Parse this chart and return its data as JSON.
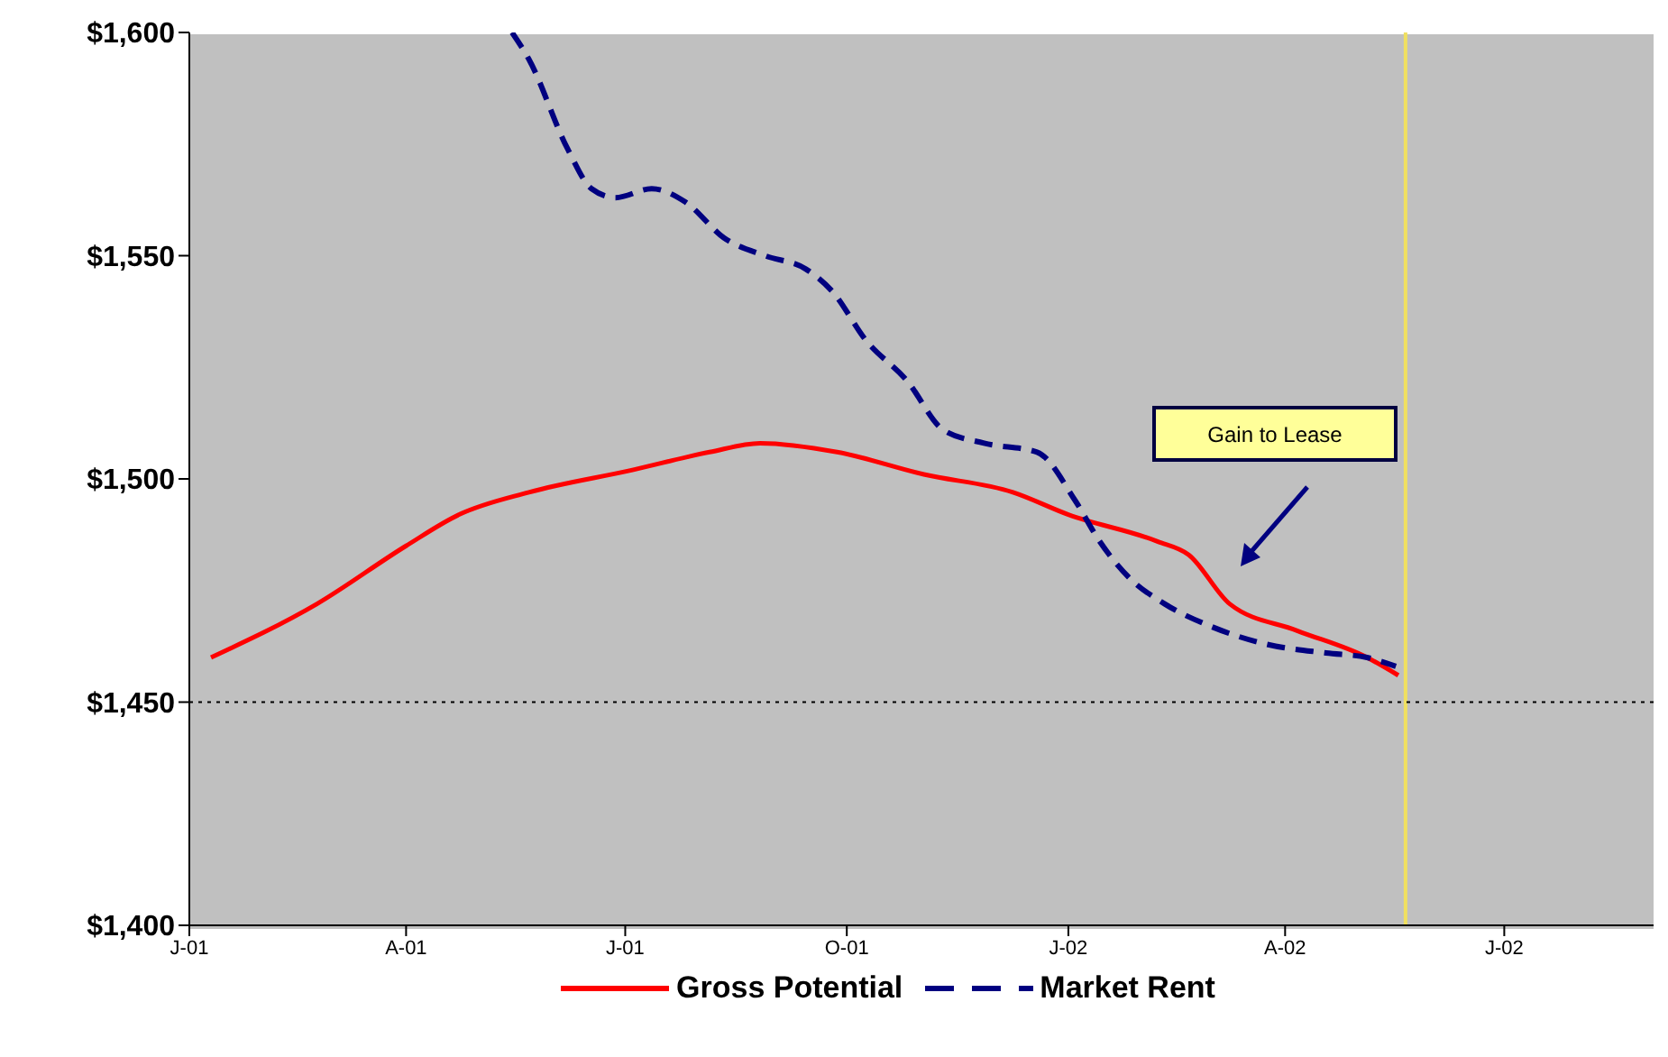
{
  "chart_data": {
    "type": "line",
    "xlim": [
      "2001-01",
      "2002-09"
    ],
    "ylim": [
      1400,
      1600
    ],
    "xticks": [
      {
        "value": "2001-01",
        "label": "J-01"
      },
      {
        "value": "2001-04",
        "label": "A-01"
      },
      {
        "value": "2001-07",
        "label": "J-01"
      },
      {
        "value": "2001-10",
        "label": "O-01"
      },
      {
        "value": "2002-01",
        "label": "J-02"
      },
      {
        "value": "2002-04",
        "label": "A-02"
      },
      {
        "value": "2002-07",
        "label": "J-02"
      }
    ],
    "yticks": [
      {
        "value": 1400,
        "label": "$1,400"
      },
      {
        "value": 1450,
        "label": "$1,450"
      },
      {
        "value": 1500,
        "label": "$1,500"
      },
      {
        "value": 1550,
        "label": "$1,550"
      },
      {
        "value": 1600,
        "label": "$1,600"
      }
    ],
    "grid": false,
    "legend": "bottom",
    "marker": "none",
    "series": [
      {
        "name": "Gross Potential",
        "color": "#ff0000",
        "line_style": "solid",
        "x": [
          "2001-01-10",
          "2001-02-23",
          "2001-04-01",
          "2001-04-23",
          "2001-05-22",
          "2001-07-04",
          "2001-08-05",
          "2001-08-26",
          "2001-09-27",
          "2001-11-02",
          "2001-12-09",
          "2002-01-01",
          "2002-02-07",
          "2002-02-20",
          "2002-03-09",
          "2002-04-06",
          "2002-05-05",
          "2002-05-18"
        ],
        "values": [
          1460,
          1472,
          1485,
          1492,
          1497,
          1502,
          1506,
          1508,
          1506,
          1501,
          1497,
          1492,
          1486,
          1483,
          1472,
          1466,
          1460,
          1456
        ]
      },
      {
        "name": "Market Rent",
        "color": "#000080",
        "line_style": "dashed",
        "x": [
          "2001-05-15",
          "2001-05-22",
          "2001-06-07",
          "2001-06-17",
          "2001-06-27",
          "2001-07-12",
          "2001-07-26",
          "2001-08-11",
          "2001-08-28",
          "2001-09-14",
          "2001-09-25",
          "2001-10-09",
          "2001-10-26",
          "2001-11-10",
          "2001-11-27",
          "2001-12-19",
          "2002-01-04",
          "2002-01-14",
          "2002-01-26",
          "2002-02-10",
          "2002-03-01",
          "2002-03-24",
          "2002-04-18",
          "2002-05-05",
          "2002-05-17"
        ],
        "values": [
          1600,
          1594,
          1574,
          1565,
          1563,
          1565,
          1562,
          1554,
          1550,
          1547,
          1542,
          1531,
          1522,
          1511,
          1508,
          1506,
          1495,
          1486,
          1478,
          1472,
          1467,
          1463,
          1461,
          1460,
          1458
        ]
      }
    ],
    "ref_lines": [
      {
        "axis": "x",
        "value": "2002-05-21",
        "color": "#f0e060",
        "line_style": "solid"
      },
      {
        "axis": "y",
        "value": 1450,
        "color": "#000000",
        "line_style": "dotted"
      }
    ],
    "annotations": [
      "Gain to Lease"
    ]
  }
}
